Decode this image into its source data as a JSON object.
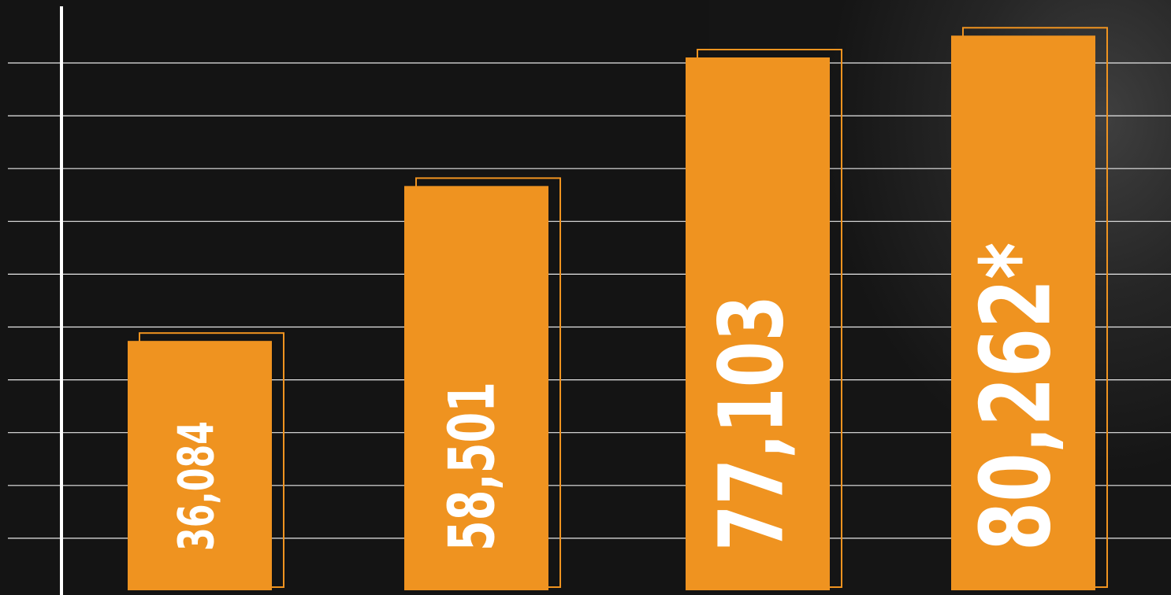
{
  "chart_data": {
    "type": "bar",
    "values": [
      36084,
      58501,
      77103,
      80262
    ],
    "value_labels": [
      "36,084",
      "58,501",
      "77,103",
      "80,262*"
    ],
    "color": "#ef9320",
    "label_color": "#ffffff",
    "ylim": [
      0,
      82000
    ],
    "grid": true
  }
}
